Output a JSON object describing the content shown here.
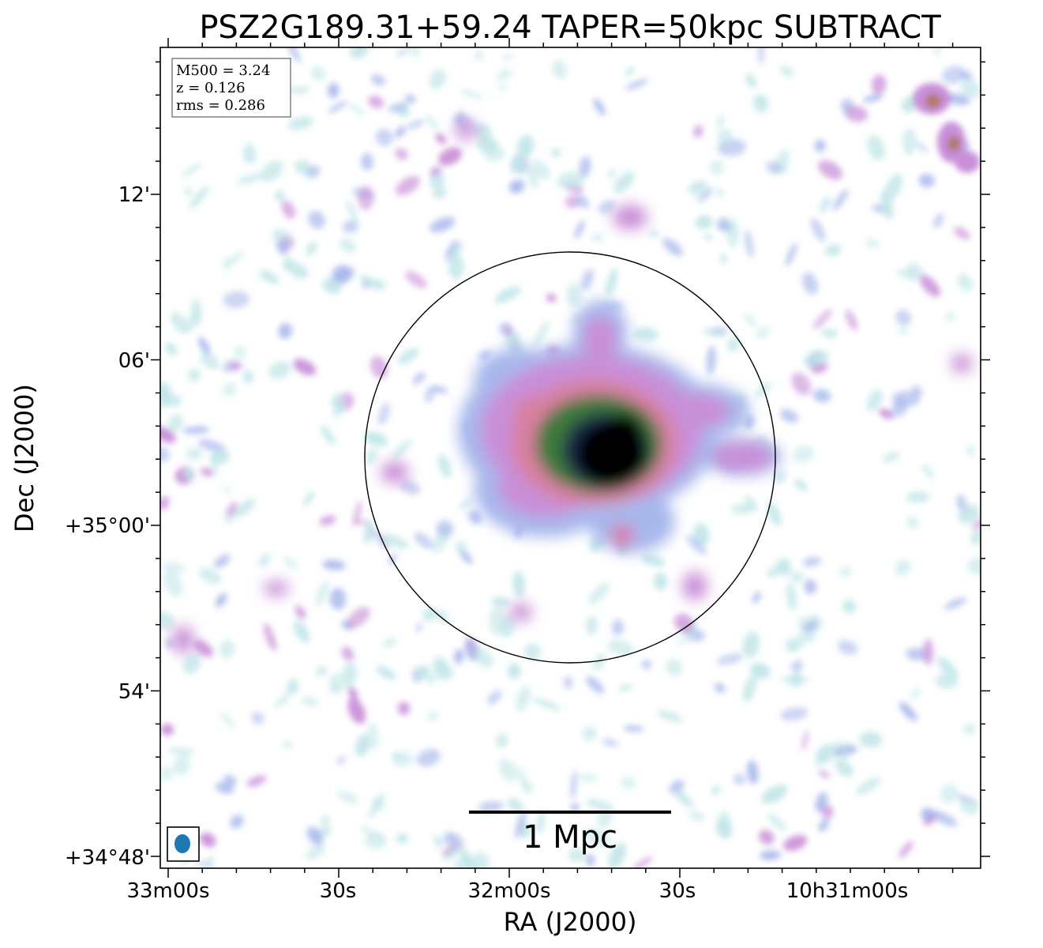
{
  "chart_data": {
    "type": "heatmap",
    "title": "PSZ2G189.31+59.24 TAPER=50kpc SUBTRACT",
    "xlabel": "RA (J2000)",
    "ylabel": "Dec (J2000)",
    "x_ticks": [
      "33m00s",
      "30s",
      "32m00s",
      "30s",
      "10h31m00s"
    ],
    "y_ticks": [
      "12'",
      "06'",
      "+35°00'",
      "54'",
      "+34°48'"
    ],
    "info_box": [
      "M500 = 3.24",
      "z = 0.126",
      "rms = 0.286"
    ],
    "scale_bar_label": "1 Mpc",
    "colormap": [
      "#c2e6e8",
      "#a8b8ec",
      "#c98fd8",
      "#d8809f",
      "#b07a6a",
      "#3d7a3a",
      "#1a2a4a",
      "#000000"
    ],
    "circle_color": "#000000",
    "beam_color": "#1f77b4"
  }
}
